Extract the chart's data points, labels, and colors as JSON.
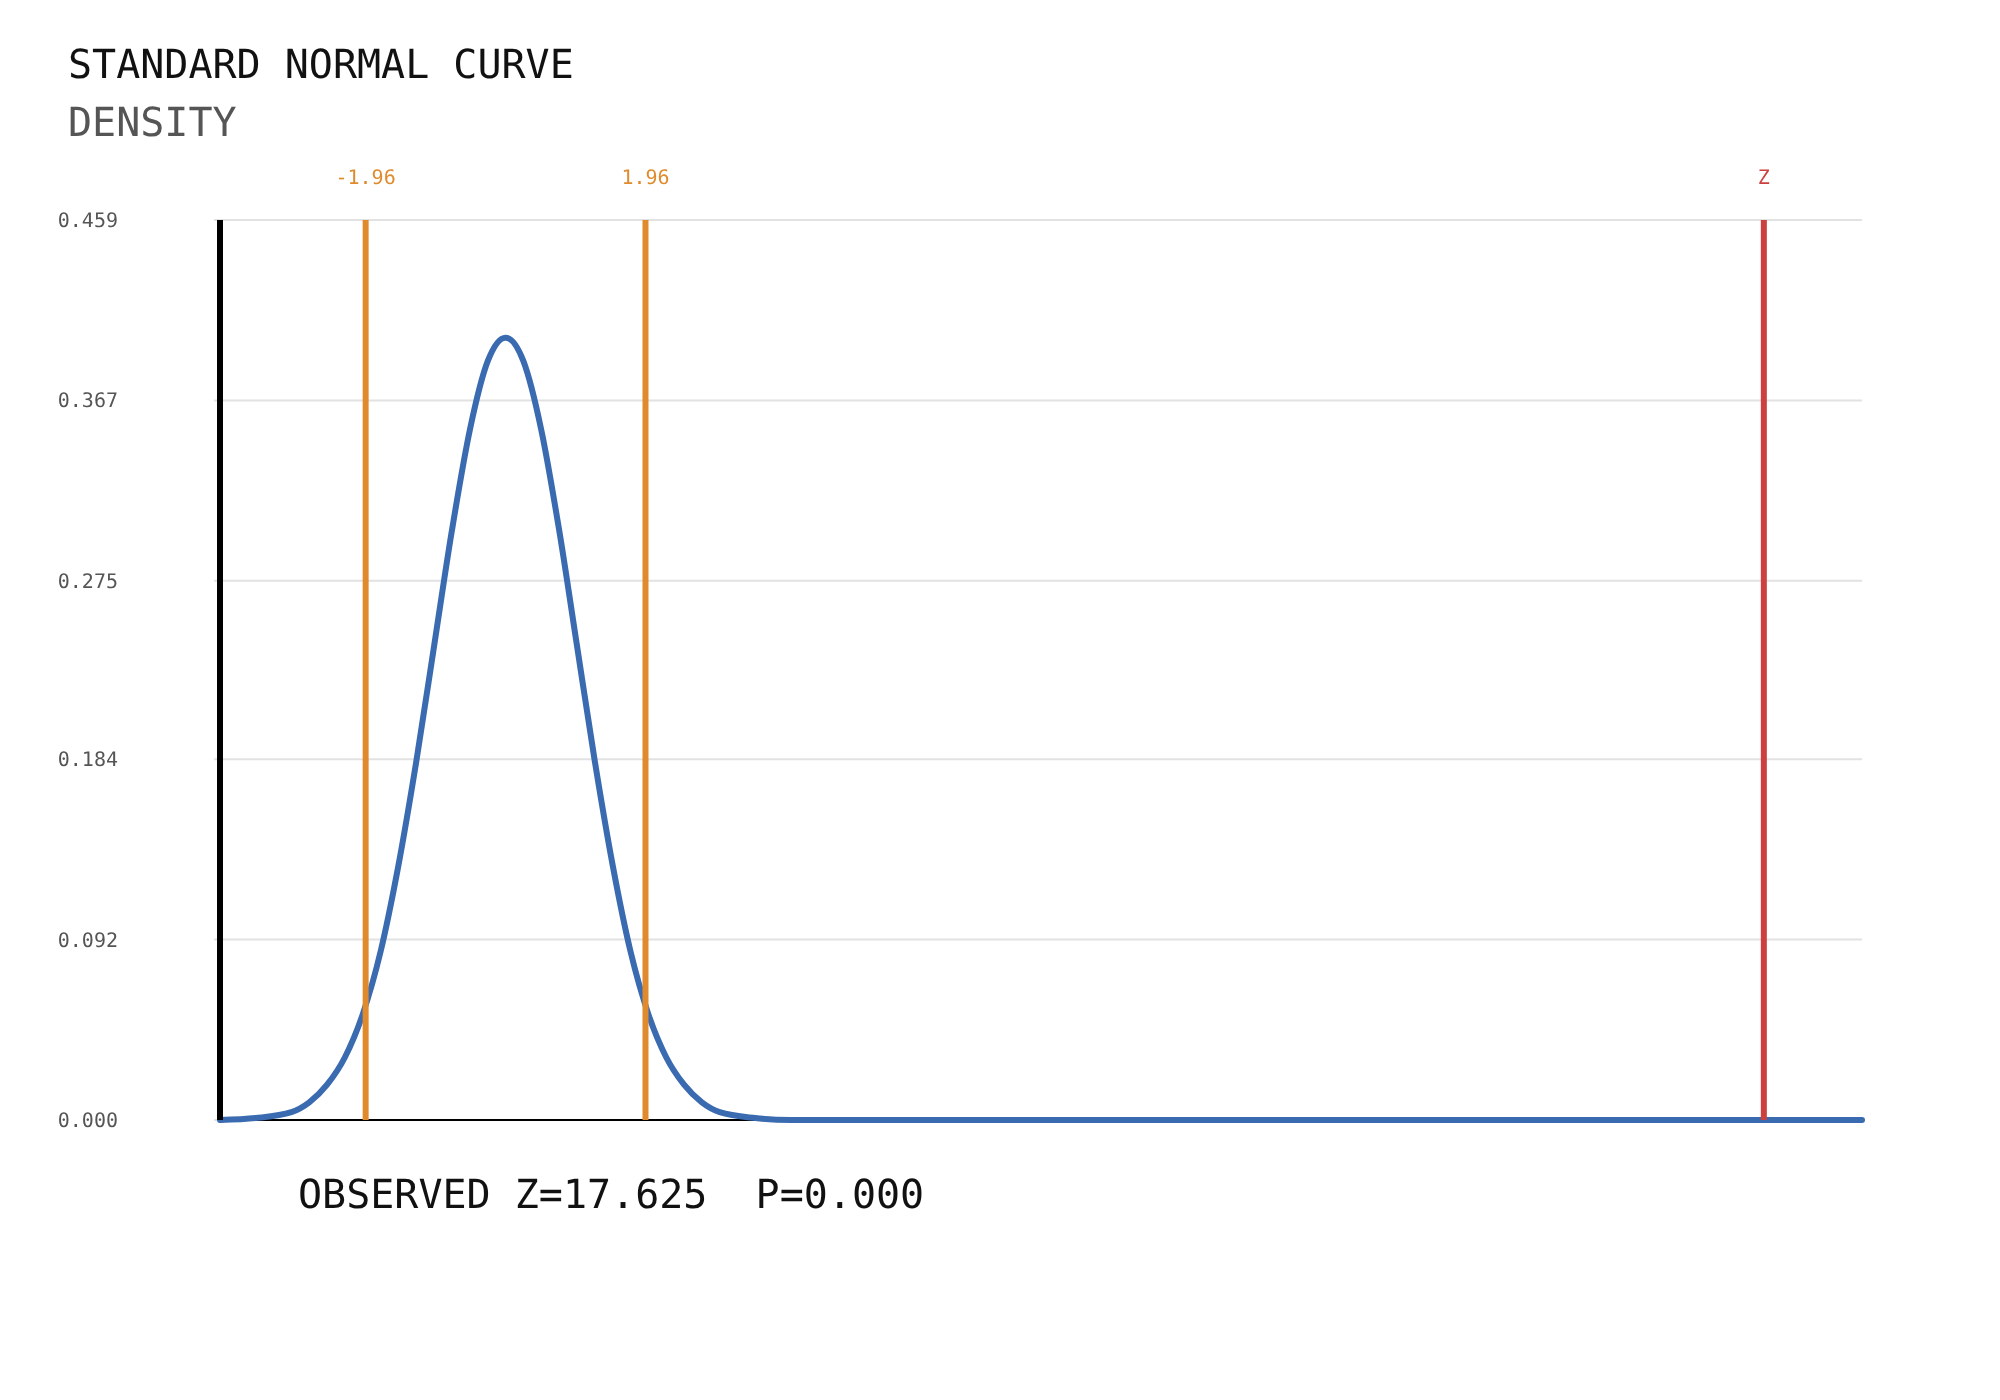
{
  "chart_data": {
    "type": "line",
    "title": "STANDARD NORMAL CURVE",
    "ylabel": "DENSITY",
    "annotations": [
      "OBSERVED Z=17.625  P=0.000"
    ],
    "x": [
      -4,
      -3.5,
      -3,
      -2.75,
      -2.5,
      -2.25,
      -2,
      -1.75,
      -1.5,
      -1.25,
      -1,
      -0.75,
      -0.5,
      -0.25,
      0,
      0.25,
      0.5,
      0.75,
      1,
      1.25,
      1.5,
      1.75,
      2,
      2.25,
      2.5,
      2.75,
      3,
      3.5,
      4,
      5,
      10,
      15,
      19
    ],
    "series": [
      {
        "color": "#3a6ab0",
        "values": [
          0,
          0.001,
          0.004,
          0.009,
          0.018,
          0.032,
          0.054,
          0.086,
          0.13,
          0.183,
          0.242,
          0.301,
          0.352,
          0.387,
          0.399,
          0.387,
          0.352,
          0.301,
          0.242,
          0.183,
          0.13,
          0.086,
          0.054,
          0.032,
          0.018,
          0.009,
          0.004,
          0.001,
          0,
          0,
          0,
          0,
          0
        ]
      }
    ],
    "xlim": [
      -4,
      19
    ],
    "xticks": [
      -1.96,
      1.96,
      {
        "value": 17.625,
        "label": "Z"
      }
    ],
    "ylim": [
      0,
      0.459
    ],
    "yticks": [
      {
        "value": 0,
        "label": "0.000"
      },
      0.092,
      0.184,
      0.275,
      0.367,
      0.459
    ],
    "ref_lines": [
      {
        "axis": "x",
        "value": -1.96,
        "color": "#e08a2e"
      },
      {
        "axis": "x",
        "value": 1.96,
        "color": "#e08a2e"
      },
      {
        "axis": "x",
        "value": 17.625,
        "color": "#cc4040"
      }
    ],
    "grid": "y",
    "line_style": "solid"
  }
}
